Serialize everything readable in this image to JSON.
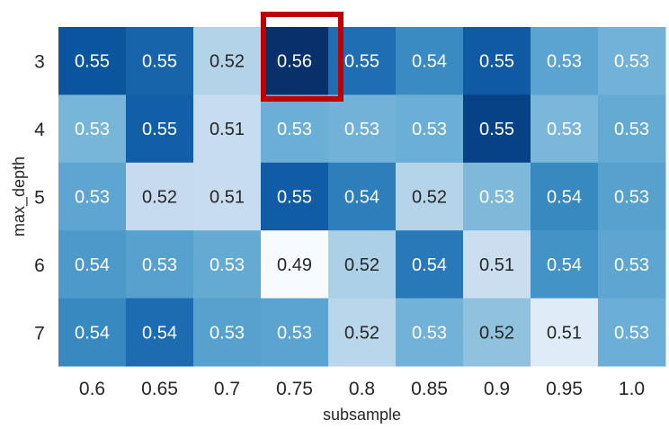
{
  "chart_data": {
    "type": "heatmap",
    "xlabel": "subsample",
    "ylabel": "max_depth",
    "x_categories": [
      "0.6",
      "0.65",
      "0.7",
      "0.75",
      "0.8",
      "0.85",
      "0.9",
      "0.95",
      "1.0"
    ],
    "y_categories": [
      "3",
      "4",
      "5",
      "6",
      "7"
    ],
    "values": [
      [
        0.55,
        0.55,
        0.52,
        0.56,
        0.55,
        0.54,
        0.55,
        0.53,
        0.53
      ],
      [
        0.53,
        0.55,
        0.51,
        0.53,
        0.53,
        0.53,
        0.55,
        0.53,
        0.53
      ],
      [
        0.53,
        0.52,
        0.51,
        0.55,
        0.54,
        0.52,
        0.53,
        0.54,
        0.53
      ],
      [
        0.54,
        0.53,
        0.53,
        0.49,
        0.52,
        0.54,
        0.51,
        0.54,
        0.53
      ],
      [
        0.54,
        0.54,
        0.53,
        0.53,
        0.52,
        0.53,
        0.52,
        0.51,
        0.53
      ]
    ],
    "shades": [
      [
        0.86,
        0.8,
        0.31,
        1.0,
        0.76,
        0.65,
        0.84,
        0.55,
        0.48
      ],
      [
        0.47,
        0.82,
        0.24,
        0.5,
        0.48,
        0.5,
        0.93,
        0.46,
        0.52
      ],
      [
        0.54,
        0.25,
        0.24,
        0.83,
        0.7,
        0.3,
        0.45,
        0.66,
        0.56
      ],
      [
        0.59,
        0.56,
        0.52,
        0.0,
        0.33,
        0.72,
        0.23,
        0.62,
        0.54
      ],
      [
        0.66,
        0.77,
        0.56,
        0.55,
        0.29,
        0.48,
        0.41,
        0.12,
        0.5
      ]
    ],
    "colormap": "Blues",
    "highlight": {
      "row": 0,
      "col": 3,
      "color": "#c00000"
    },
    "grid": false
  }
}
